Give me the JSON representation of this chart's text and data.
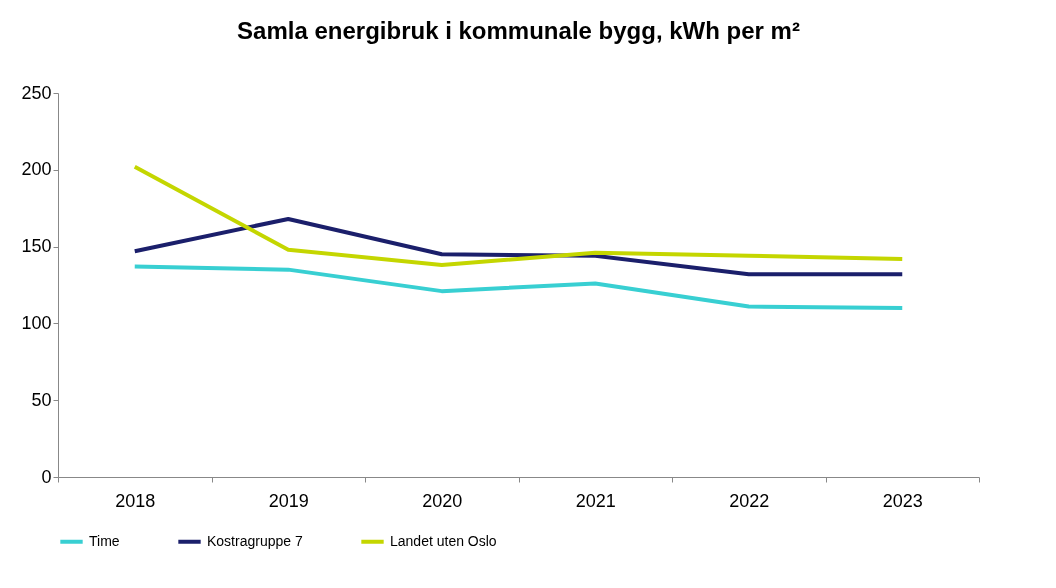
{
  "chart_data": {
    "type": "line",
    "title": "Samla energibruk i kommunale bygg, kWh per m²",
    "categories": [
      "2018",
      "2019",
      "2020",
      "2021",
      "2022",
      "2023"
    ],
    "series": [
      {
        "name": "Time",
        "color": "#38cfd2",
        "values": [
          137,
          135,
          121,
          126,
          111,
          110
        ]
      },
      {
        "name": "Kostragruppe 7",
        "color": "#1b1f6b",
        "values": [
          147,
          168,
          145,
          144,
          132,
          132
        ]
      },
      {
        "name": "Landet uten Oslo",
        "color": "#c4d600",
        "values": [
          202,
          148,
          138,
          146,
          144,
          142
        ]
      }
    ],
    "ylim": [
      0,
      250
    ],
    "yticks": [
      0,
      50,
      100,
      150,
      200,
      250
    ],
    "grid": false,
    "legend": "bottom",
    "marker": "none",
    "line_style": "solid"
  }
}
